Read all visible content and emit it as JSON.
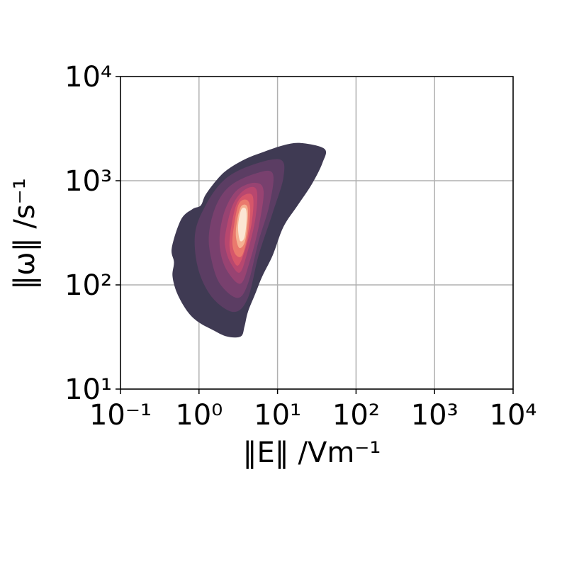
{
  "chart_data": {
    "type": "kde",
    "x_label": "‖E‖ /Vm⁻¹",
    "y_label": "‖ω‖ /s⁻¹",
    "xscale": "log",
    "yscale": "log",
    "grid": true,
    "xlim": [
      0.1,
      10000
    ],
    "xticks": [
      {
        "value": 0.1,
        "label": "10⁻¹"
      },
      {
        "value": 1,
        "label": "10⁰"
      },
      {
        "value": 10,
        "label": "10¹"
      },
      {
        "value": 100,
        "label": "10²"
      },
      {
        "value": 1000,
        "label": "10³"
      },
      {
        "value": 10000,
        "label": "10⁴"
      }
    ],
    "ylim": [
      10,
      10000
    ],
    "yticks": [
      {
        "value": 10,
        "label": "10¹"
      },
      {
        "value": 100,
        "label": "10²"
      },
      {
        "value": 1000,
        "label": "10³"
      },
      {
        "value": 10000,
        "label": "10⁴"
      }
    ],
    "contours": [
      {
        "color": "#3f3a53",
        "x": [
          0.48,
          0.45,
          0.59,
          0.83,
          1.05,
          1.21,
          1.65,
          2.26,
          3.8,
          6.4,
          11.9,
          20,
          39.7,
          37.3,
          27.3,
          18,
          11.9,
          8.7,
          6.4,
          5.2,
          4.2,
          3.8,
          3.4,
          2.26,
          1.49,
          0.98,
          0.72,
          0.53,
          0.46
        ],
        "y": [
          165,
          226,
          423,
          535,
          578,
          731,
          1000,
          1265,
          1600,
          1870,
          2190,
          2300,
          2020,
          1480,
          925,
          578,
          361,
          193,
          121,
          82,
          55,
          40,
          32,
          32,
          37,
          44,
          55,
          82,
          121
        ]
      },
      {
        "color": "#5b3d63",
        "x": [
          0.89,
          1.21,
          2.04,
          4.2,
          10.7,
          11.9,
          8.7,
          5.75,
          4.2,
          2.78,
          1.49,
          0.98
        ],
        "y": [
          309,
          578,
          1000,
          1370,
          1600,
          1080,
          494,
          193,
          75,
          55,
          75,
          141
        ]
      },
      {
        "color": "#78406e",
        "x": [
          1.34,
          1.65,
          2.5,
          5.2,
          8.7,
          7.85,
          5.75,
          4.2,
          3.08,
          1.84,
          1.43
        ],
        "y": [
          309,
          578,
          895,
          1170,
          1170,
          578,
          264,
          103,
          75,
          103,
          179
        ]
      },
      {
        "color": "#984372",
        "x": [
          1.84,
          2.17,
          3.08,
          5.2,
          6.65,
          5.75,
          4.4,
          3.4,
          2.36,
          1.91
        ],
        "y": [
          309,
          535,
          817,
          955,
          791,
          361,
          165,
          103,
          131,
          193
        ]
      },
      {
        "color": "#b8476f",
        "x": [
          2.17,
          2.67,
          3.8,
          5.4,
          5.2,
          4.04,
          3.28,
          2.5,
          2.17
        ],
        "y": [
          309,
          578,
          817,
          817,
          423,
          193,
          131,
          165,
          226
        ]
      },
      {
        "color": "#d6566a",
        "x": [
          2.5,
          2.96,
          3.8,
          4.87,
          4.68,
          3.8,
          3.08,
          2.5
        ],
        "y": [
          309,
          578,
          731,
          698,
          391,
          209,
          153,
          209
        ]
      },
      {
        "color": "#ea7a6d",
        "x": [
          2.78,
          3.21,
          4.04,
          4.49,
          4.2,
          3.56,
          2.96,
          2.67
        ],
        "y": [
          361,
          597,
          655,
          535,
          309,
          193,
          193,
          244
        ]
      },
      {
        "color": "#f5b192",
        "x": [
          3.02,
          3.4,
          4.04,
          4.2,
          3.87,
          3.28,
          2.96
        ],
        "y": [
          391,
          560,
          578,
          457,
          264,
          226,
          286
        ]
      },
      {
        "color": "#fbe6d3",
        "x": [
          3.21,
          3.49,
          3.95,
          4.04,
          3.8,
          3.35,
          3.15
        ],
        "y": [
          423,
          535,
          535,
          423,
          286,
          264,
          334
        ]
      }
    ]
  }
}
